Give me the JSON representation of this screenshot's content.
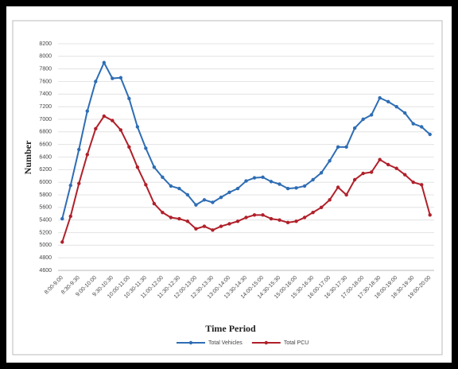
{
  "chart_data": {
    "type": "line",
    "x_label": "Time Period",
    "y_label": "Number",
    "categories": [
      "8:00-9:00",
      null,
      "8:30-9:30",
      null,
      "9:00-10:00",
      null,
      "9:30-10:30",
      null,
      "10:00-11:00",
      null,
      "10:30-11:30",
      null,
      "11:00-12:00",
      null,
      "11:30-12:30",
      null,
      "12:00-13:00",
      null,
      "12:30-13:30",
      null,
      "13:00-14:00",
      null,
      "13:30-14:30",
      null,
      "14:00-15:00",
      null,
      "14:30-15:30",
      null,
      "15:00-16:00",
      null,
      "15:30-16:30",
      null,
      "16:00-17:00",
      null,
      "16:30-17:30",
      null,
      "17:00-18:00",
      null,
      "17:30-18:30",
      null,
      "18:00-19:00",
      null,
      "18:30-19:30",
      null,
      "19:00-20:00"
    ],
    "series": [
      {
        "name": "Total Vehicles",
        "color": "#2e6db4",
        "values": [
          5420,
          5950,
          6520,
          7130,
          7600,
          7900,
          7650,
          7660,
          7330,
          6880,
          6540,
          6240,
          6080,
          5940,
          5900,
          5800,
          5640,
          5720,
          5680,
          5760,
          5840,
          5900,
          6020,
          6070,
          6080,
          6010,
          5970,
          5900,
          5910,
          5940,
          6040,
          6150,
          6340,
          6560,
          6560,
          6860,
          7000,
          7070,
          7340,
          7280,
          7200,
          7100,
          6930,
          6880,
          6760
        ]
      },
      {
        "name": "Total PCU",
        "color": "#b0202a",
        "values": [
          5050,
          5460,
          5980,
          6440,
          6850,
          7050,
          6980,
          6830,
          6560,
          6240,
          5960,
          5660,
          5520,
          5440,
          5420,
          5380,
          5260,
          5300,
          5240,
          5300,
          5340,
          5380,
          5440,
          5480,
          5480,
          5420,
          5400,
          5360,
          5380,
          5440,
          5520,
          5600,
          5720,
          5920,
          5800,
          6040,
          6140,
          6160,
          6360,
          6280,
          6220,
          6120,
          6000,
          5960,
          5480
        ]
      }
    ],
    "ylim": [
      4600,
      8200
    ],
    "yticks": [
      4600,
      4800,
      5000,
      5200,
      5400,
      5600,
      5800,
      6000,
      6200,
      6400,
      6600,
      6800,
      7000,
      7200,
      7400,
      7600,
      7800,
      8000,
      8200
    ],
    "grid": true,
    "legend": "bottom"
  }
}
